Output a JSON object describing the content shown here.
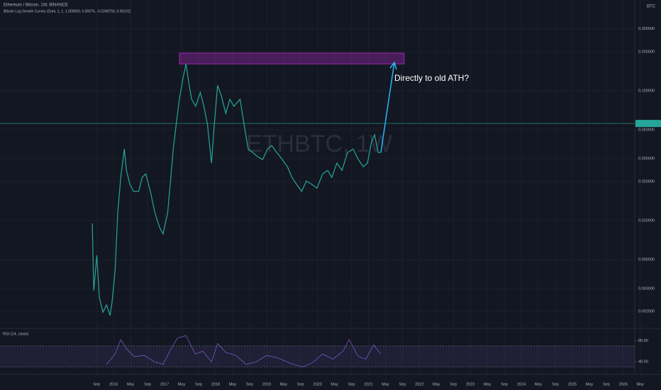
{
  "chart_data": [
    {
      "type": "line",
      "title": "Ethereum / Bitcoin, 1W, BINANCE",
      "subtitle": "Bitcoin Log Growth Curves (Dark, 1, 1, 1.000000, 0.00076, -0.0249750, 0.00102)",
      "watermark": "ETHBTC, 1W",
      "currency": "BTC",
      "annotation": "Directly to old ATH?",
      "color": "#26a69a",
      "log_scale": true,
      "grid": true,
      "x": [
        2015.58,
        2015.61,
        2015.67,
        2015.72,
        2015.79,
        2015.86,
        2015.93,
        2015.97,
        2016.03,
        2016.08,
        2016.14,
        2016.21,
        2016.25,
        2016.32,
        2016.39,
        2016.49,
        2016.56,
        2016.63,
        2016.72,
        2016.81,
        2016.9,
        2016.97,
        2017.06,
        2017.11,
        2017.17,
        2017.22,
        2017.29,
        2017.36,
        2017.42,
        2017.47,
        2017.53,
        2017.61,
        2017.7,
        2017.77,
        2017.84,
        2017.92,
        2017.97,
        2018.04,
        2018.11,
        2018.2,
        2018.28,
        2018.36,
        2018.48,
        2018.57,
        2018.64,
        2018.73,
        2018.81,
        2018.92,
        2019.02,
        2019.1,
        2019.2,
        2019.31,
        2019.41,
        2019.5,
        2019.59,
        2019.69,
        2019.78,
        2019.89,
        2019.99,
        2020.1,
        2020.2,
        2020.28,
        2020.38,
        2020.48,
        2020.59,
        2020.7,
        2020.8,
        2020.9,
        2020.98,
        2021.06,
        2021.12,
        2021.19,
        2021.24
      ],
      "values": [
        0.0095,
        0.00288,
        0.0054,
        0.00254,
        0.00197,
        0.00224,
        0.00186,
        0.00239,
        0.0042,
        0.0115,
        0.0215,
        0.0356,
        0.0244,
        0.019,
        0.0168,
        0.0168,
        0.0215,
        0.0229,
        0.0168,
        0.0115,
        0.0089,
        0.0079,
        0.0115,
        0.019,
        0.0356,
        0.052,
        0.086,
        0.125,
        0.161,
        0.118,
        0.086,
        0.076,
        0.097,
        0.076,
        0.055,
        0.0277,
        0.052,
        0.11,
        0.092,
        0.067,
        0.086,
        0.076,
        0.086,
        0.052,
        0.0356,
        0.0335,
        0.0314,
        0.0295,
        0.0356,
        0.0379,
        0.0335,
        0.0295,
        0.026,
        0.0215,
        0.019,
        0.0168,
        0.0202,
        0.019,
        0.0178,
        0.0229,
        0.0244,
        0.0215,
        0.0277,
        0.0244,
        0.0335,
        0.0356,
        0.0295,
        0.026,
        0.0277,
        0.0404,
        0.0458,
        0.0335,
        0.0335
      ],
      "price_line": 0.056,
      "ath_zone": {
        "x": [
          2017.29,
          2021.7
        ],
        "y": [
          0.161,
          0.195
        ]
      },
      "xlim": [
        2013.77,
        2026.74
      ],
      "xticks": [
        {
          "value": 2015.667,
          "label": "Sep"
        },
        2016,
        {
          "value": 2016.333,
          "label": "May"
        },
        {
          "value": 2016.667,
          "label": "Sep"
        },
        2017,
        {
          "value": 2017.333,
          "label": "May"
        },
        {
          "value": 2017.667,
          "label": "Sep"
        },
        2018,
        {
          "value": 2018.333,
          "label": "May"
        },
        {
          "value": 2018.667,
          "label": "Sep"
        },
        2019,
        {
          "value": 2019.333,
          "label": "May"
        },
        {
          "value": 2019.667,
          "label": "Sep"
        },
        2020,
        {
          "value": 2020.333,
          "label": "May"
        },
        {
          "value": 2020.667,
          "label": "Sep"
        },
        2021,
        {
          "value": 2021.333,
          "label": "May"
        },
        {
          "value": 2021.667,
          "label": "Sep"
        },
        2022,
        {
          "value": 2022.333,
          "label": "May"
        },
        {
          "value": 2022.667,
          "label": "Sep"
        },
        2023,
        {
          "value": 2023.333,
          "label": "May"
        },
        {
          "value": 2023.667,
          "label": "Sep"
        },
        2024,
        {
          "value": 2024.333,
          "label": "May"
        },
        {
          "value": 2024.667,
          "label": "Sep"
        },
        2025,
        {
          "value": 2025.333,
          "label": "May"
        },
        {
          "value": 2025.667,
          "label": "Sep"
        },
        2026,
        {
          "value": 2026.333,
          "label": "May"
        }
      ],
      "ylim": [
        0.0015,
        0.5
      ],
      "yticks": [
        {
          "value": 0.3,
          "label": "0.300000"
        },
        {
          "value": 0.2,
          "label": "0.200000"
        },
        {
          "value": 0.1,
          "label": "0.100000"
        },
        {
          "value": 0.05,
          "label": "0.050000"
        },
        {
          "value": 0.03,
          "label": "0.030000"
        },
        {
          "value": 0.02,
          "label": "0.020000"
        },
        {
          "value": 0.01,
          "label": "0.010000"
        },
        {
          "value": 0.005,
          "label": "0.005000"
        },
        {
          "value": 0.003,
          "label": "0.003000"
        },
        {
          "value": 0.002,
          "label": "0.002000"
        }
      ]
    },
    {
      "type": "line",
      "title": "RSI (14, close)",
      "color": "#7e57c2",
      "x": [
        2015.86,
        2016.03,
        2016.14,
        2016.25,
        2016.4,
        2016.6,
        2016.8,
        2016.97,
        2017.1,
        2017.25,
        2017.42,
        2017.6,
        2017.75,
        2017.92,
        2018.04,
        2018.2,
        2018.4,
        2018.6,
        2018.8,
        2019.0,
        2019.2,
        2019.45,
        2019.7,
        2019.9,
        2020.1,
        2020.3,
        2020.5,
        2020.62,
        2020.8,
        2020.95,
        2021.1,
        2021.24
      ],
      "values": [
        35,
        55,
        82,
        65,
        50,
        52,
        40,
        35,
        60,
        85,
        90,
        55,
        60,
        40,
        75,
        58,
        52,
        35,
        40,
        52,
        48,
        38,
        30,
        38,
        55,
        45,
        60,
        82,
        50,
        45,
        72,
        55
      ],
      "band": [
        30,
        70
      ],
      "ylim": [
        16,
        101
      ],
      "yticks": [
        {
          "value": 80,
          "label": "80.00"
        },
        {
          "value": 40,
          "label": "40.00"
        }
      ]
    }
  ]
}
